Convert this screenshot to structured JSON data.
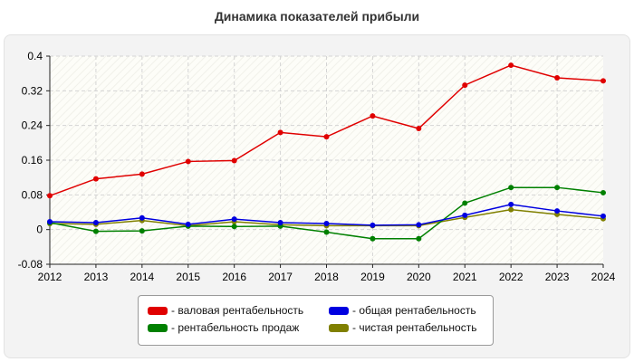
{
  "chart_data": {
    "type": "line",
    "title": "Динамика показателей прибыли",
    "xlabel": "",
    "ylabel": "",
    "x": [
      "2012",
      "2013",
      "2014",
      "2015",
      "2016",
      "2017",
      "2018",
      "2019",
      "2020",
      "2021",
      "2022",
      "2023",
      "2024"
    ],
    "ylim": [
      -0.08,
      0.4
    ],
    "yticks": [
      "0.4",
      "0.32",
      "0.24",
      "0.16",
      "0.08",
      "0",
      "-0.08"
    ],
    "grid": true,
    "legend_position": "bottom",
    "series": [
      {
        "name": "- валовая рентабельность",
        "color": "#e00000",
        "values": [
          0.078,
          0.117,
          0.128,
          0.157,
          0.159,
          0.224,
          0.214,
          0.262,
          0.233,
          0.333,
          0.379,
          0.35,
          0.343
        ]
      },
      {
        "name": "- общая рентабельность",
        "color": "#0000e0",
        "values": [
          0.018,
          0.016,
          0.027,
          0.012,
          0.024,
          0.016,
          0.014,
          0.01,
          0.011,
          0.033,
          0.058,
          0.043,
          0.031
        ]
      },
      {
        "name": "- рентабельность продаж",
        "color": "#008000",
        "values": [
          0.016,
          -0.004,
          -0.003,
          0.008,
          0.007,
          0.008,
          -0.006,
          -0.021,
          -0.021,
          0.061,
          0.097,
          0.097,
          0.085
        ]
      },
      {
        "name": "- чистая рентабельность",
        "color": "#808000",
        "values": [
          0.014,
          0.012,
          0.021,
          0.009,
          0.018,
          0.011,
          0.009,
          0.009,
          0.009,
          0.028,
          0.046,
          0.035,
          0.025
        ]
      }
    ]
  }
}
